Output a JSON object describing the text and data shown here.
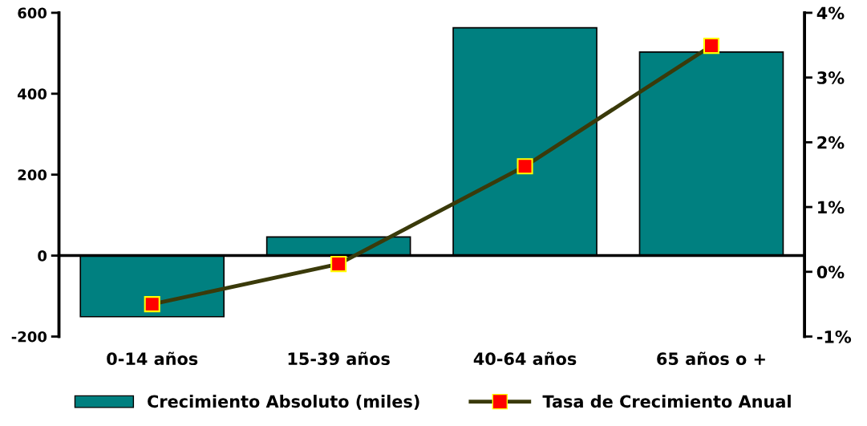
{
  "chart_data": {
    "type": "bar",
    "categories": [
      "0-14 años",
      "15-39 años",
      "40-64 años",
      "65 años o +"
    ],
    "series": [
      {
        "name": "Crecimiento Absoluto (miles)",
        "color": "#008080",
        "values": [
          -151,
          46,
          563,
          503
        ]
      },
      {
        "name": "Tasa de Crecimiento Anual",
        "type": "line",
        "axis": "y2",
        "color": "#3a3a0a",
        "marker": "square",
        "values": [
          -0.5,
          0.12,
          1.63,
          3.49
        ]
      }
    ],
    "ylim": [
      -200,
      600
    ],
    "yticks": [
      -200,
      0,
      200,
      400,
      600
    ],
    "y2lim": [
      -1,
      4
    ],
    "y2ticks": [
      {
        "value": -1,
        "label": "-1%"
      },
      {
        "value": 0,
        "label": "0%"
      },
      {
        "value": 1,
        "label": "1%"
      },
      {
        "value": 2,
        "label": "2%"
      },
      {
        "value": 3,
        "label": "3%"
      },
      {
        "value": 4,
        "label": "4%"
      }
    ],
    "legend": "bottom"
  }
}
